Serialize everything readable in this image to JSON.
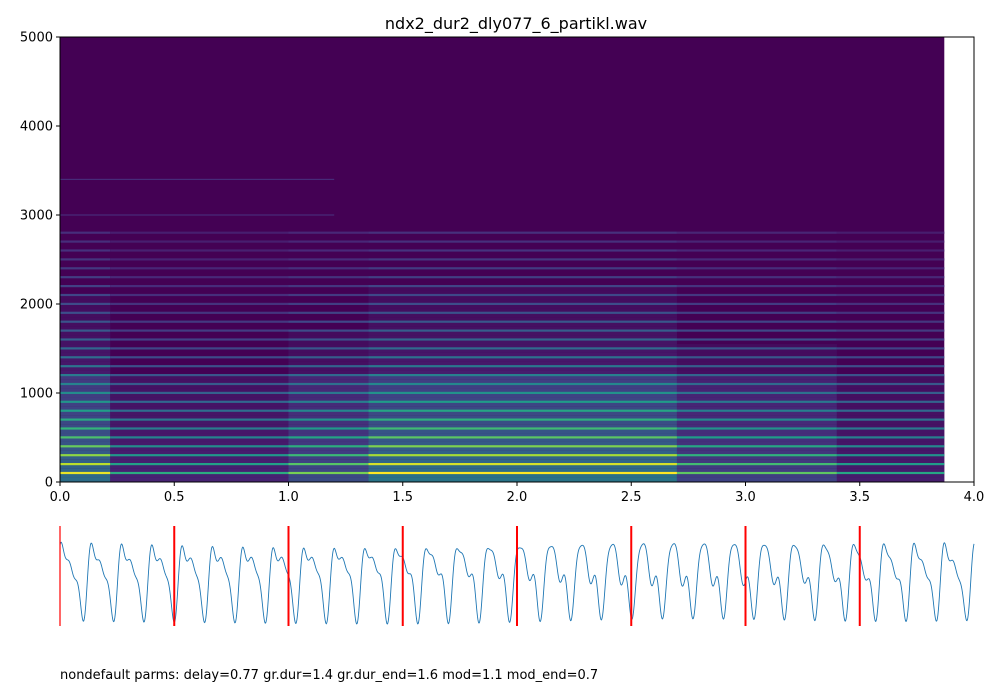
{
  "chart_data": [
    {
      "type": "heatmap",
      "title": "ndx2_dur2_dly077_6_partikl.wav",
      "xlabel": "",
      "ylabel": "",
      "xlim": [
        0.0,
        4.0
      ],
      "ylim": [
        0,
        5000
      ],
      "x_ticks": [
        "0.0",
        "0.5",
        "1.0",
        "1.5",
        "2.0",
        "2.5",
        "3.0",
        "3.5",
        "4.0"
      ],
      "y_ticks": [
        "0",
        "1000",
        "2000",
        "3000",
        "4000",
        "5000"
      ],
      "signal_end_time": 3.87,
      "colormap": "viridis",
      "fundamental_hz": 100,
      "harmonics_visible_up_to_hz": 2800,
      "energy_segments": [
        {
          "start": 0.0,
          "end": 0.22,
          "level": 0.55
        },
        {
          "start": 0.22,
          "end": 1.0,
          "level": 0.15
        },
        {
          "start": 1.0,
          "end": 1.35,
          "level": 0.35
        },
        {
          "start": 1.35,
          "end": 2.7,
          "level": 0.6
        },
        {
          "start": 2.7,
          "end": 3.4,
          "level": 0.3
        },
        {
          "start": 3.4,
          "end": 3.87,
          "level": 0.12
        }
      ],
      "grid": false
    },
    {
      "type": "line",
      "title": "",
      "xlim": [
        0.0,
        4.0
      ],
      "markers_x": [
        0.0,
        0.5,
        1.0,
        1.5,
        2.0,
        2.5,
        3.0,
        3.5
      ],
      "marker_color": "#ff0000",
      "line_color": "#1f77b4",
      "axes_visible": false
    }
  ],
  "footer": {
    "text": "nondefault parms: delay=0.77 gr.dur=1.4 gr.dur_end=1.6 mod=1.1 mod_end=0.7"
  }
}
